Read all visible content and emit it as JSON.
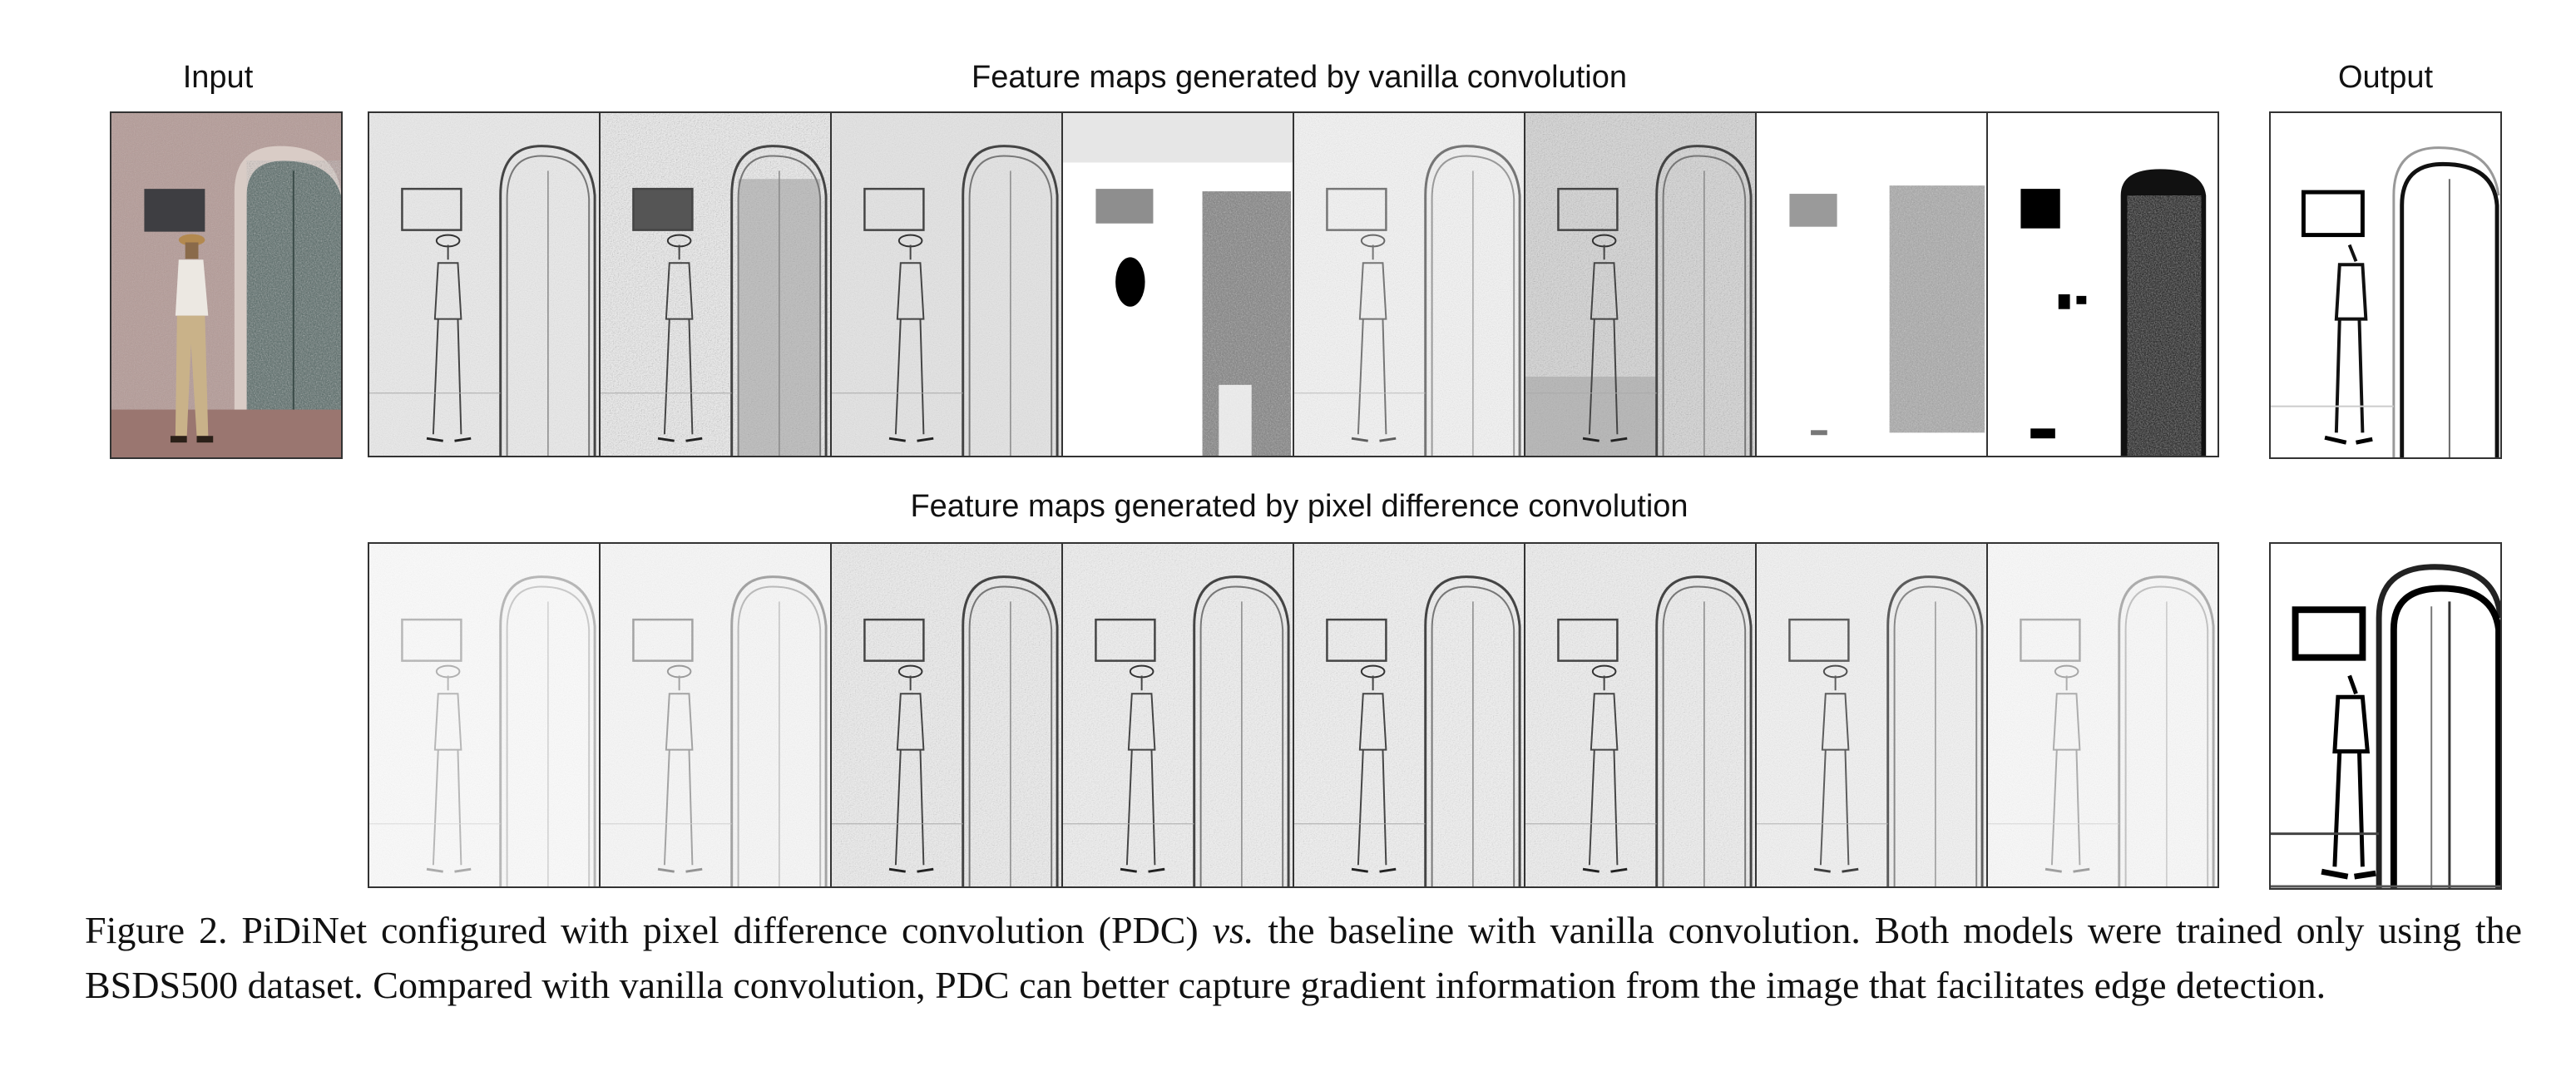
{
  "headers": {
    "input": "Input",
    "vanilla": "Feature maps generated by vanilla convolution",
    "output": "Output",
    "pdc": "Feature maps generated by pixel difference convolution"
  },
  "caption": {
    "label": "Figure 2.",
    "part1": "PiDiNet configured with pixel difference convolution (PDC)",
    "vs": "vs.",
    "part2": "the baseline with vanilla convolution. Both models were trained only using the BSDS500 dataset. Compared with vanilla convolution, PDC can better capture gradient information from the image that facilitates edge detection."
  },
  "colors": {
    "photo_wall": "#b49a96",
    "photo_door": "#4f6360",
    "photo_ground": "#9a7670",
    "frame_border": "#333333"
  }
}
